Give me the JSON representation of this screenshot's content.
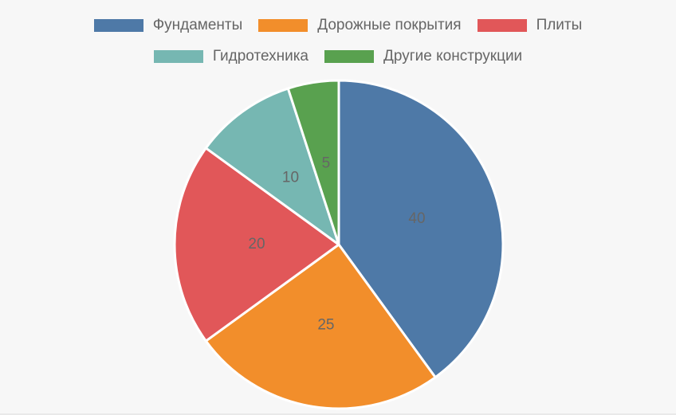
{
  "chart_data": {
    "type": "pie",
    "categories": [
      "Фундаменты",
      "Дорожные покрытия",
      "Плиты",
      "Гидротехника",
      "Другие конструкции"
    ],
    "values": [
      40,
      25,
      20,
      10,
      5
    ],
    "colors": [
      "#4e79a7",
      "#f28e2b",
      "#e15759",
      "#76b7b2",
      "#59a14f"
    ],
    "data_labels": [
      "40",
      "25",
      "20",
      "10",
      "5"
    ],
    "legend": "top",
    "start_angle": "12 o'clock",
    "direction": "clockwise"
  }
}
